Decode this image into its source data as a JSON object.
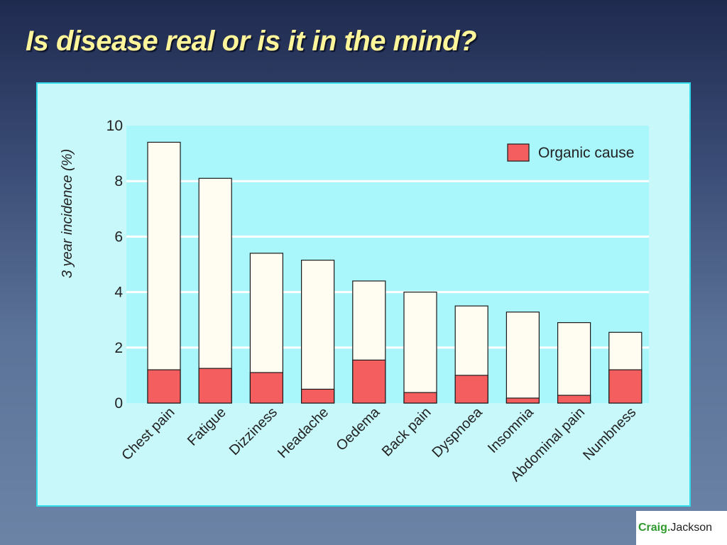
{
  "slide": {
    "title": "Is disease real or is it in the mind?"
  },
  "branding": {
    "first": "Craig.",
    "last": "Jackson"
  },
  "colors": {
    "plot_background": "#a9f6fb",
    "panel_background": "#c8f8fa",
    "panel_border": "#33dcea",
    "total_bar": "#fffdf2",
    "organic_bar": "#f55e5e",
    "title_text": "#fff59a"
  },
  "chart_data": {
    "type": "bar",
    "stacked": true,
    "title": "",
    "xlabel": "",
    "ylabel": "3 year incidence (%)",
    "ylim": [
      0,
      10
    ],
    "yticks": [
      0,
      2,
      4,
      6,
      8,
      10
    ],
    "grid": true,
    "legend": {
      "position": "top-right",
      "entries": [
        "Organic cause"
      ]
    },
    "categories": [
      "Chest pain",
      "Fatigue",
      "Dizziness",
      "Headache",
      "Oedema",
      "Back pain",
      "Dyspnoea",
      "Insomnia",
      "Abdominal pain",
      "Numbness"
    ],
    "series": [
      {
        "name": "Organic cause",
        "color": "#f55e5e",
        "values": [
          1.2,
          1.25,
          1.1,
          0.5,
          1.55,
          0.38,
          1.0,
          0.18,
          0.28,
          1.2
        ]
      },
      {
        "values": [
          9.4,
          8.1,
          5.4,
          5.15,
          4.4,
          4.0,
          3.5,
          3.28,
          2.9,
          2.55
        ],
        "color": "#fffdf2"
      }
    ]
  }
}
